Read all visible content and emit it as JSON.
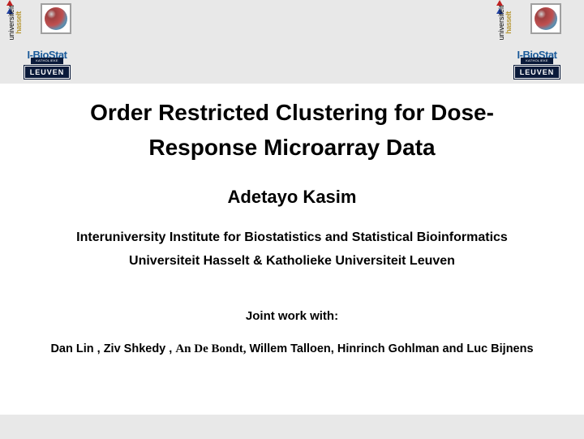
{
  "slide": {
    "title_line1": "Order Restricted Clustering for Dose-",
    "title_line2": "Response Microarray Data",
    "author": "Adetayo Kasim",
    "affiliation_line1": "Interuniversity Institute for Biostatistics and Statistical Bioinformatics",
    "affiliation_line2": "Universiteit Hasselt & Katholieke Universiteit Leuven",
    "joint_label": "Joint work with:",
    "collab_prefix": "Dan Lin , Ziv Shkedy , ",
    "collab_serif": "An De Bondt,",
    "collab_suffix": "  Willem Talloen, Hinrinch Gohlman and  Luc Bijnens"
  },
  "logo": {
    "univ_line1": "universiteit",
    "univ_line2": "hasselt",
    "biostat": "I-BioStat",
    "leuven": "LEUVEN",
    "ku": "KATHOLIEKE UNIVERSITEIT"
  },
  "colors": {
    "band_bg": "#e8e8e8",
    "biostat_text": "#1a5a9a",
    "leuven_bg": "#0a1a3a",
    "hasselt_gold": "#b89a3a"
  }
}
